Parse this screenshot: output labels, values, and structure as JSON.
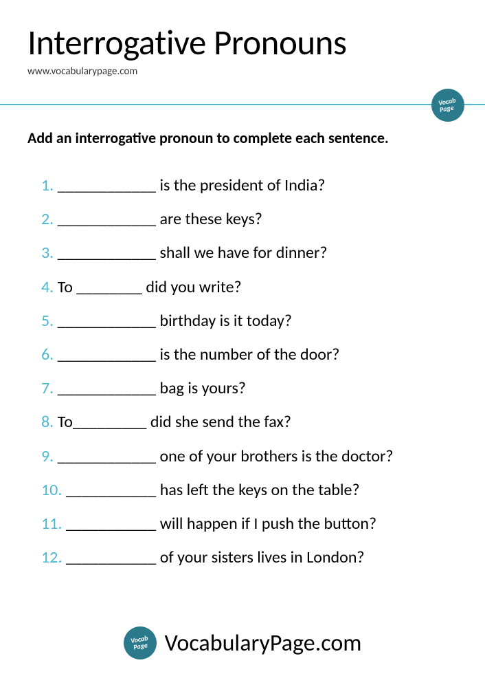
{
  "title": "Interrogative Pronouns",
  "website_small": "www.vocabularypage.com",
  "instructions": "Add an interrogative pronoun to complete each sentence.",
  "colors": {
    "accent": "#4db8d0",
    "badge_bg": "#2a7a8c",
    "text": "#000000",
    "background": "#ffffff"
  },
  "badge_label_top": "Vocab",
  "badge_label_bottom": "Page",
  "questions": [
    {
      "num": "1.",
      "text": " ____________ is the president of India?"
    },
    {
      "num": "2.",
      "text": " ____________ are these keys?"
    },
    {
      "num": "3.",
      "text": " ____________ shall we have for dinner?"
    },
    {
      "num": "4.",
      "text": " To ________ did you write?"
    },
    {
      "num": "5.",
      "text": " ____________ birthday is it today?"
    },
    {
      "num": "6.",
      "text": " ____________ is the number of the door?"
    },
    {
      "num": "7.",
      "text": " ____________ bag is yours?"
    },
    {
      "num": "8.",
      "text": " To_________ did she send the fax?"
    },
    {
      "num": "9.",
      "text": " ____________ one of your brothers is the doctor?"
    },
    {
      "num": "10.",
      "text": " ___________ has left the keys on the table?"
    },
    {
      "num": "11.",
      "text": " ___________ will happen if I push the button?"
    },
    {
      "num": "12.",
      "text": " ___________ of your sisters lives in London?"
    }
  ],
  "footer_text": "VocabularyPage.com"
}
